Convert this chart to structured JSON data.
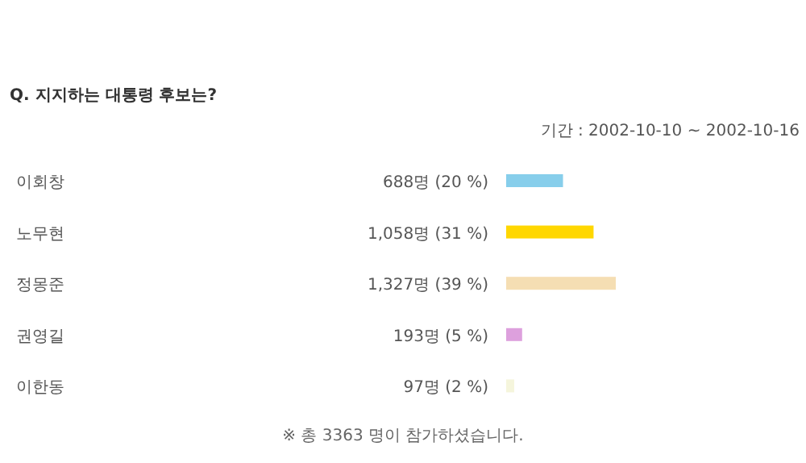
{
  "chart_data": {
    "type": "bar",
    "orientation": "horizontal",
    "title": "Q. 지지하는 대통령 후보는?",
    "subtitle": "기간 : 2002-10-10 ~ 2002-10-16",
    "categories": [
      "이회창",
      "노무현",
      "정몽준",
      "권영길",
      "이한동"
    ],
    "values": [
      688,
      1058,
      1327,
      193,
      97
    ],
    "value_labels": [
      "688명 (20 %)",
      "1,058명 (31 %)",
      "1,327명 (39 %)",
      "193명 (5 %)",
      "97명 (2 %)"
    ],
    "colors": [
      "#87ceeb",
      "#ffd700",
      "#f5deb3",
      "#dda0dd",
      "#f5f5dc"
    ],
    "annotations": [
      "※ 총 3363 명이 참가하셨습니다."
    ]
  }
}
